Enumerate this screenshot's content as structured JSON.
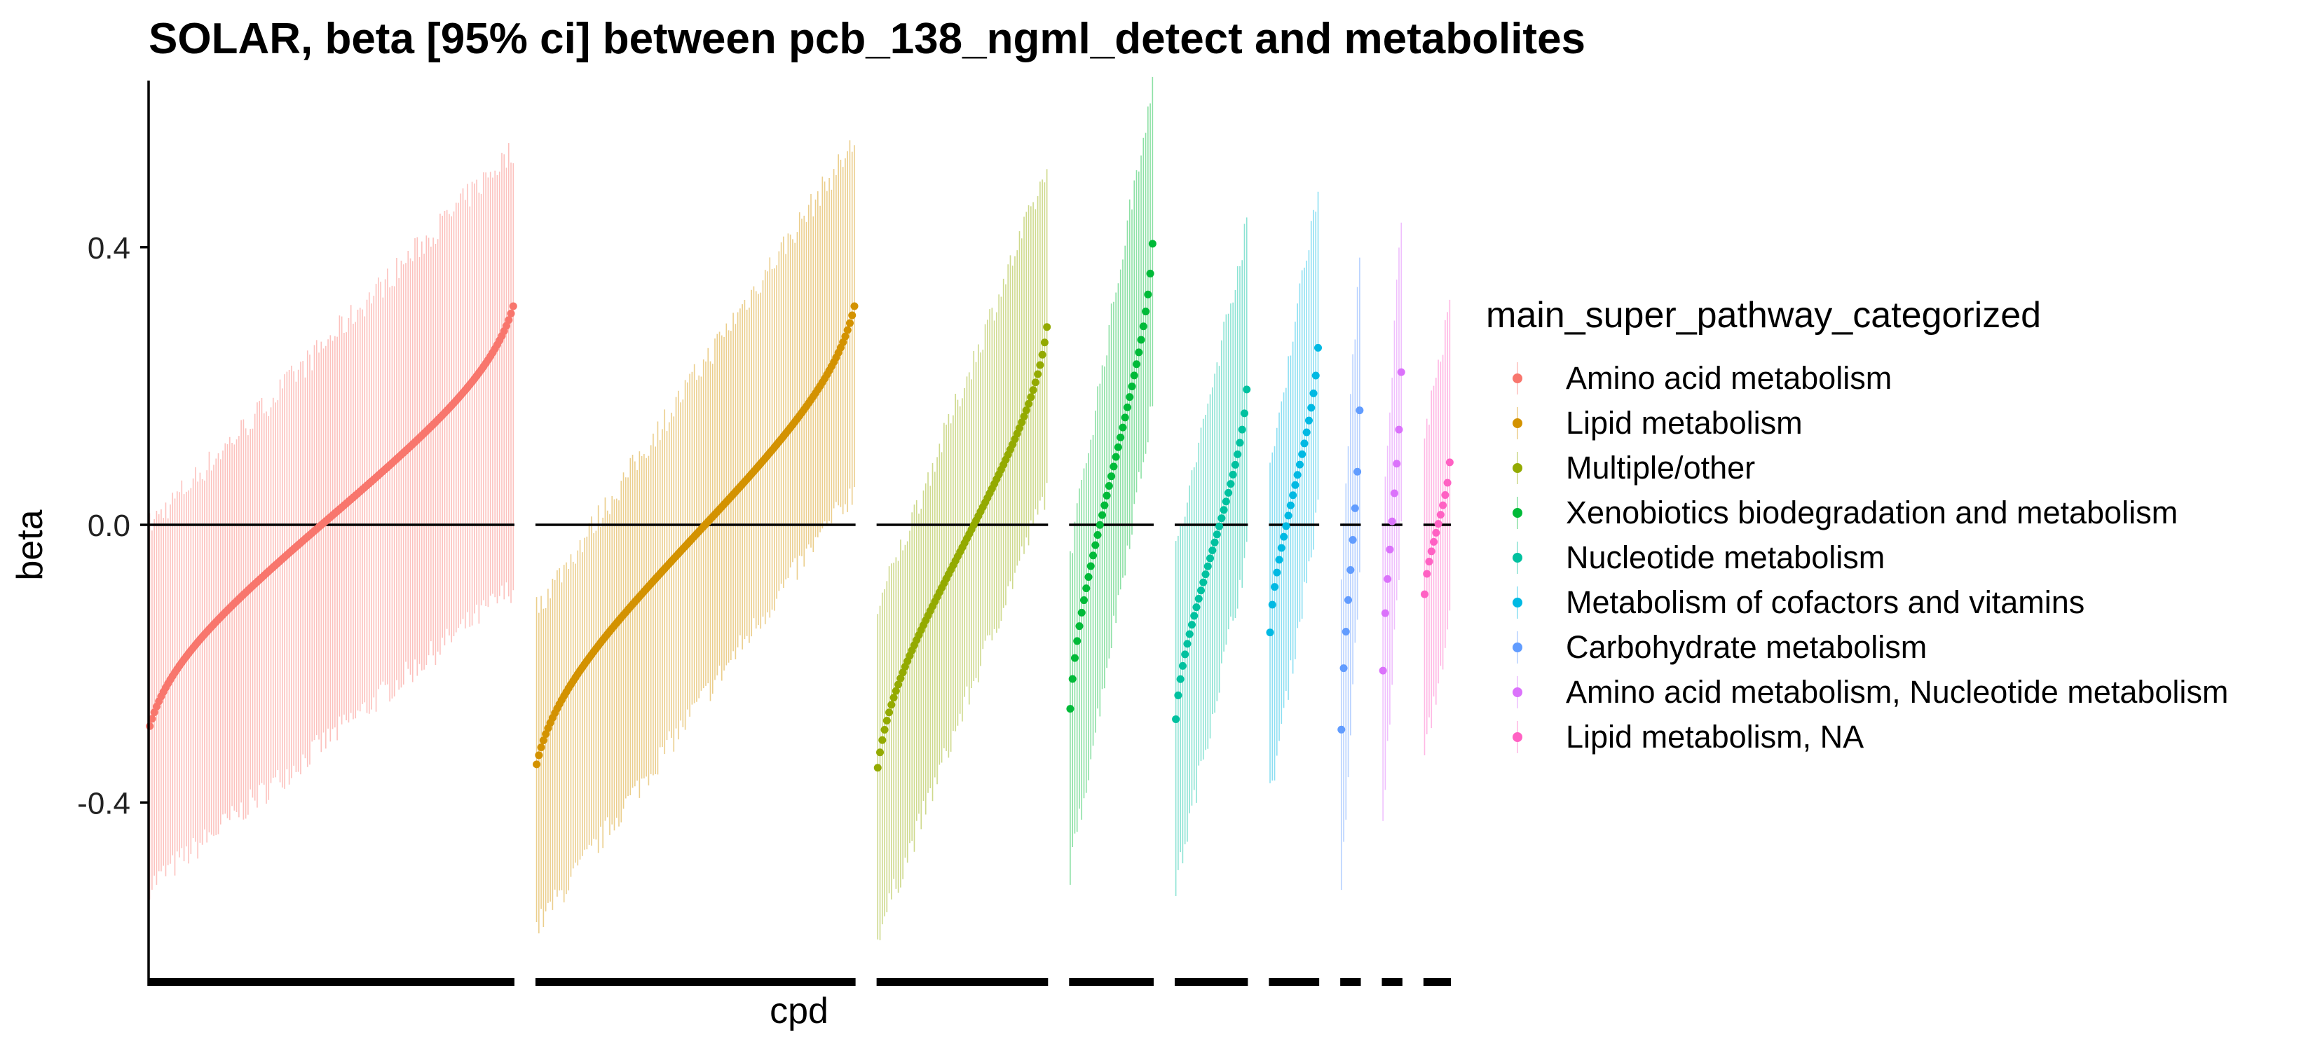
{
  "chart_data": {
    "type": "scatter",
    "title": "SOLAR, beta [95% ci] between pcb_138_ngml_detect and metabolites",
    "xlabel": "cpd",
    "ylabel": "beta",
    "ylim": [
      -0.65,
      0.64
    ],
    "yticks": [
      -0.4,
      0.0,
      0.4
    ],
    "ytick_labels": [
      "-0.4",
      "0.0",
      "0.4"
    ],
    "reference_line": 0.0,
    "grid": false,
    "legend_title": "main_super_pathway_categorized",
    "legend_position": "right",
    "series": [
      {
        "name": "Amino acid metabolism",
        "color": "#F8766D",
        "n": 160,
        "beta_min": -0.29,
        "beta_max": 0.315,
        "ci_lower_start": -0.52,
        "ci_lower_end": -0.09,
        "ci_upper_start": 0.0,
        "ci_upper_end": 0.54
      },
      {
        "name": "Lipid metabolism",
        "color": "#D39200",
        "n": 140,
        "beta_min": -0.345,
        "beta_max": 0.315,
        "ci_lower_start": -0.58,
        "ci_lower_end": 0.05,
        "ci_upper_start": -0.12,
        "ci_upper_end": 0.55
      },
      {
        "name": "Multiple/other",
        "color": "#93AA00",
        "n": 75,
        "beta_min": -0.35,
        "beta_max": 0.285,
        "ci_lower_start": -0.59,
        "ci_lower_end": 0.05,
        "ci_upper_start": -0.12,
        "ci_upper_end": 0.51
      },
      {
        "name": "Xenobiotics biodegradation and metabolism",
        "color": "#00BA38",
        "n": 37,
        "beta_min": -0.265,
        "beta_max": 0.405,
        "ci_lower_start": -0.5,
        "ci_lower_end": 0.17,
        "ci_upper_start": -0.04,
        "ci_upper_end": 0.64
      },
      {
        "name": "Nucleotide metabolism",
        "color": "#00C19F",
        "n": 32,
        "beta_min": -0.28,
        "beta_max": 0.195,
        "ci_lower_start": -0.52,
        "ci_lower_end": -0.04,
        "ci_upper_start": -0.04,
        "ci_upper_end": 0.43
      },
      {
        "name": "Metabolism of cofactors and vitamins",
        "color": "#00B9E3",
        "n": 22,
        "beta_min": -0.155,
        "beta_max": 0.255,
        "ci_lower_start": -0.39,
        "ci_lower_end": 0.02,
        "ci_upper_start": 0.08,
        "ci_upper_end": 0.49
      },
      {
        "name": "Carbohydrate metabolism",
        "color": "#619CFF",
        "n": 9,
        "beta_min": -0.295,
        "beta_max": 0.165,
        "ci_lower_start": -0.53,
        "ci_lower_end": -0.07,
        "ci_upper_start": -0.06,
        "ci_upper_end": 0.4
      },
      {
        "name": "Amino acid metabolism, Nucleotide metabolism",
        "color": "#DB72FB",
        "n": 9,
        "beta_min": -0.21,
        "beta_max": 0.22,
        "ci_lower_start": -0.43,
        "ci_lower_end": -0.01,
        "ci_upper_start": 0.01,
        "ci_upper_end": 0.45
      },
      {
        "name": "Lipid metabolism, NA",
        "color": "#FF61C3",
        "n": 12,
        "beta_min": -0.1,
        "beta_max": 0.09,
        "ci_lower_start": -0.33,
        "ci_lower_end": -0.14,
        "ci_upper_start": 0.13,
        "ci_upper_end": 0.31
      }
    ]
  }
}
